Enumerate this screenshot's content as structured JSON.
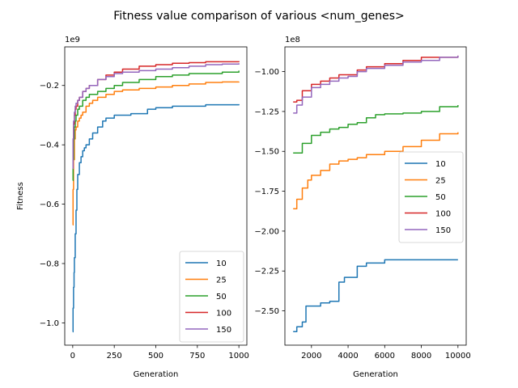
{
  "figure": {
    "title": "Fitness value comparison of various <num_genes>"
  },
  "chart_data": [
    {
      "type": "line",
      "xlabel": "Generation",
      "ylabel": "Fitness",
      "offset_text": "1e9",
      "xlim": [
        -48,
        1048
      ],
      "ylim": [
        -1.075,
        -0.07
      ],
      "xticks": [
        0,
        250,
        500,
        750,
        1000
      ],
      "xtick_labels": [
        "0",
        "250",
        "500",
        "750",
        "1000"
      ],
      "yticks": [
        -1.0,
        -0.8,
        -0.6,
        -0.4,
        -0.2
      ],
      "ytick_labels": [
        "−1.0",
        "−0.8",
        "−0.6",
        "−0.4",
        "−0.2"
      ],
      "legend": {
        "position": "lower-right"
      },
      "series": [
        {
          "name": "10",
          "color": "#1f77b4",
          "x": [
            0,
            2,
            5,
            8,
            10,
            15,
            20,
            25,
            30,
            40,
            50,
            60,
            70,
            80,
            100,
            120,
            150,
            180,
            200,
            250,
            300,
            350,
            400,
            450,
            500,
            600,
            700,
            800,
            900,
            1000
          ],
          "y": [
            -1.03,
            -0.95,
            -0.88,
            -0.83,
            -0.78,
            -0.7,
            -0.62,
            -0.55,
            -0.5,
            -0.46,
            -0.44,
            -0.42,
            -0.41,
            -0.4,
            -0.38,
            -0.36,
            -0.34,
            -0.32,
            -0.31,
            -0.3,
            -0.3,
            -0.295,
            -0.295,
            -0.28,
            -0.275,
            -0.27,
            -0.27,
            -0.265,
            -0.265,
            -0.263
          ]
        },
        {
          "name": "25",
          "color": "#ff7f0e",
          "x": [
            0,
            2,
            5,
            10,
            15,
            20,
            30,
            40,
            50,
            60,
            80,
            100,
            120,
            150,
            200,
            250,
            300,
            400,
            500,
            600,
            700,
            800,
            900,
            1000
          ],
          "y": [
            -0.67,
            -0.55,
            -0.45,
            -0.38,
            -0.35,
            -0.34,
            -0.32,
            -0.31,
            -0.3,
            -0.29,
            -0.27,
            -0.26,
            -0.25,
            -0.24,
            -0.23,
            -0.22,
            -0.215,
            -0.21,
            -0.205,
            -0.2,
            -0.195,
            -0.19,
            -0.188,
            -0.187
          ]
        },
        {
          "name": "50",
          "color": "#2ca02c",
          "x": [
            0,
            2,
            5,
            10,
            15,
            20,
            30,
            40,
            60,
            80,
            100,
            150,
            200,
            250,
            300,
            400,
            500,
            600,
            700,
            800,
            900,
            1000
          ],
          "y": [
            -0.52,
            -0.45,
            -0.38,
            -0.34,
            -0.32,
            -0.3,
            -0.28,
            -0.27,
            -0.25,
            -0.24,
            -0.23,
            -0.22,
            -0.21,
            -0.2,
            -0.19,
            -0.18,
            -0.17,
            -0.165,
            -0.16,
            -0.16,
            -0.155,
            -0.15
          ]
        },
        {
          "name": "100",
          "color": "#d62728",
          "x": [
            0,
            2,
            5,
            10,
            15,
            20,
            30,
            40,
            60,
            80,
            100,
            150,
            200,
            250,
            300,
            400,
            500,
            600,
            700,
            800,
            900,
            1000
          ],
          "y": [
            -0.44,
            -0.38,
            -0.33,
            -0.3,
            -0.28,
            -0.27,
            -0.25,
            -0.24,
            -0.22,
            -0.21,
            -0.2,
            -0.18,
            -0.165,
            -0.155,
            -0.145,
            -0.135,
            -0.13,
            -0.125,
            -0.123,
            -0.12,
            -0.12,
            -0.118
          ]
        },
        {
          "name": "150",
          "color": "#9467bd",
          "x": [
            0,
            2,
            5,
            10,
            15,
            20,
            30,
            40,
            60,
            80,
            100,
            150,
            200,
            250,
            300,
            400,
            500,
            600,
            700,
            800,
            900,
            1000
          ],
          "y": [
            -0.48,
            -0.38,
            -0.32,
            -0.29,
            -0.27,
            -0.26,
            -0.25,
            -0.24,
            -0.22,
            -0.21,
            -0.2,
            -0.18,
            -0.17,
            -0.16,
            -0.155,
            -0.15,
            -0.145,
            -0.14,
            -0.135,
            -0.13,
            -0.128,
            -0.125
          ]
        }
      ]
    },
    {
      "type": "line",
      "xlabel": "Generation",
      "ylabel": "",
      "offset_text": "1e8",
      "xlim": [
        550,
        10450
      ],
      "ylim": [
        -2.715,
        -0.845
      ],
      "xticks": [
        2000,
        4000,
        6000,
        8000,
        10000
      ],
      "xtick_labels": [
        "2000",
        "4000",
        "6000",
        "8000",
        "10000"
      ],
      "yticks": [
        -2.5,
        -2.25,
        -2.0,
        -1.75,
        -1.5,
        -1.25,
        -1.0
      ],
      "ytick_labels": [
        "−2.50",
        "−2.25",
        "−2.00",
        "−1.75",
        "−1.50",
        "−1.25",
        "−1.00"
      ],
      "legend": {
        "position": "center-right"
      },
      "series": [
        {
          "name": "10",
          "color": "#1f77b4",
          "x": [
            1000,
            1200,
            1500,
            1700,
            2000,
            2500,
            3000,
            3500,
            3800,
            4000,
            4500,
            5000,
            5500,
            6000,
            7000,
            8000,
            9000,
            10000
          ],
          "y": [
            -2.63,
            -2.6,
            -2.57,
            -2.47,
            -2.47,
            -2.45,
            -2.44,
            -2.32,
            -2.29,
            -2.29,
            -2.22,
            -2.2,
            -2.2,
            -2.18,
            -2.18,
            -2.18,
            -2.18,
            -2.18
          ]
        },
        {
          "name": "25",
          "color": "#ff7f0e",
          "x": [
            1000,
            1200,
            1500,
            1800,
            2000,
            2500,
            3000,
            3500,
            4000,
            4500,
            5000,
            6000,
            7000,
            8000,
            9000,
            10000
          ],
          "y": [
            -1.86,
            -1.8,
            -1.73,
            -1.68,
            -1.65,
            -1.62,
            -1.58,
            -1.56,
            -1.55,
            -1.54,
            -1.52,
            -1.5,
            -1.47,
            -1.43,
            -1.39,
            -1.38
          ]
        },
        {
          "name": "50",
          "color": "#2ca02c",
          "x": [
            1000,
            1500,
            2000,
            2500,
            3000,
            3500,
            4000,
            4500,
            5000,
            5500,
            6000,
            7000,
            8000,
            9000,
            10000
          ],
          "y": [
            -1.51,
            -1.45,
            -1.4,
            -1.38,
            -1.36,
            -1.35,
            -1.33,
            -1.32,
            -1.29,
            -1.27,
            -1.265,
            -1.26,
            -1.25,
            -1.22,
            -1.21
          ]
        },
        {
          "name": "100",
          "color": "#d62728",
          "x": [
            1000,
            1200,
            1500,
            2000,
            2500,
            3000,
            3500,
            4000,
            4500,
            5000,
            6000,
            7000,
            8000,
            9000,
            10000
          ],
          "y": [
            -1.19,
            -1.18,
            -1.12,
            -1.08,
            -1.06,
            -1.04,
            -1.02,
            -1.02,
            -0.99,
            -0.97,
            -0.95,
            -0.93,
            -0.91,
            -0.91,
            -0.9
          ]
        },
        {
          "name": "150",
          "color": "#9467bd",
          "x": [
            1000,
            1200,
            1500,
            2000,
            2500,
            3000,
            3500,
            4000,
            4500,
            5000,
            6000,
            7000,
            8000,
            9000,
            10000
          ],
          "y": [
            -1.26,
            -1.21,
            -1.16,
            -1.1,
            -1.08,
            -1.06,
            -1.04,
            -1.03,
            -1.0,
            -0.98,
            -0.96,
            -0.94,
            -0.93,
            -0.91,
            -0.9
          ]
        }
      ]
    }
  ]
}
